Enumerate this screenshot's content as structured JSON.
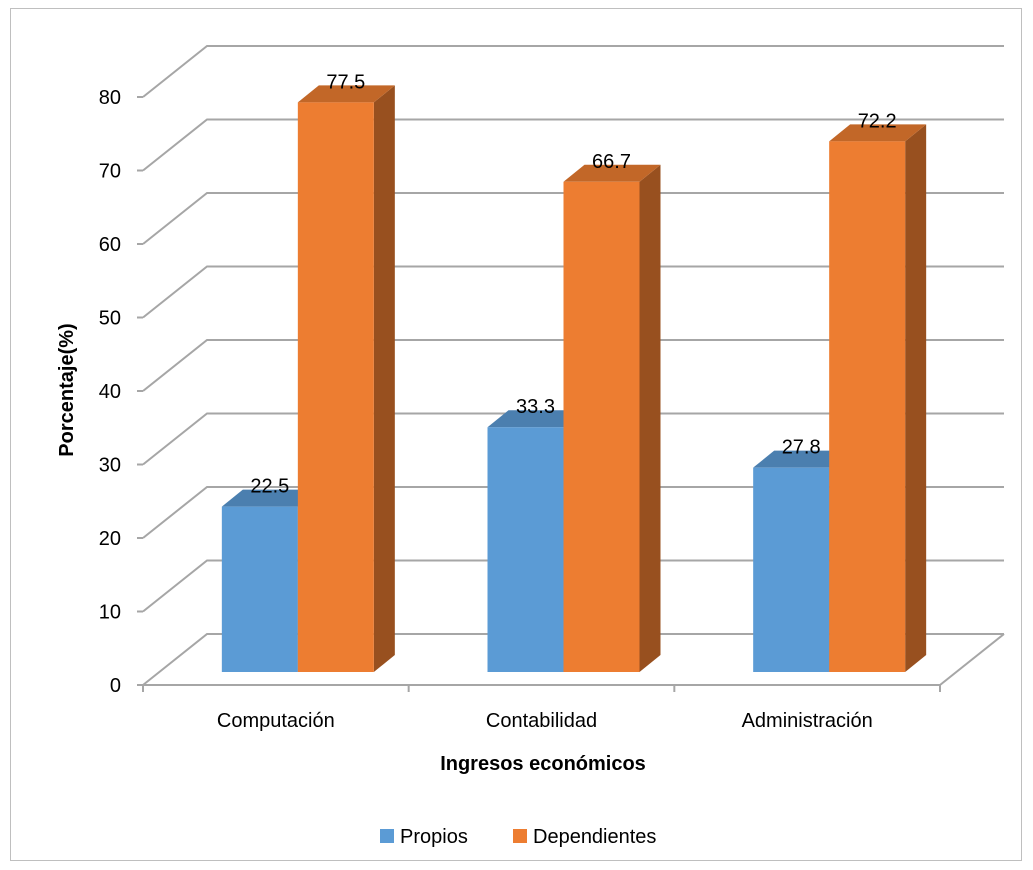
{
  "chart_data": {
    "type": "bar",
    "title": "",
    "xlabel": "Ingresos económicos",
    "ylabel": "Porcentaje(%)",
    "ylim": [
      0,
      80
    ],
    "yticks": [
      0,
      10,
      20,
      30,
      40,
      50,
      60,
      70,
      80
    ],
    "categories": [
      "Computación",
      "Contabilidad",
      "Administración"
    ],
    "series": [
      {
        "name": "Propios",
        "values": [
          22.5,
          33.3,
          27.8
        ],
        "color": "#5b9bd5"
      },
      {
        "name": "Dependientes",
        "values": [
          77.5,
          66.7,
          72.2
        ],
        "color": "#ed7d31"
      }
    ],
    "grid": true,
    "legend": "bottom",
    "style": "3d-column"
  }
}
